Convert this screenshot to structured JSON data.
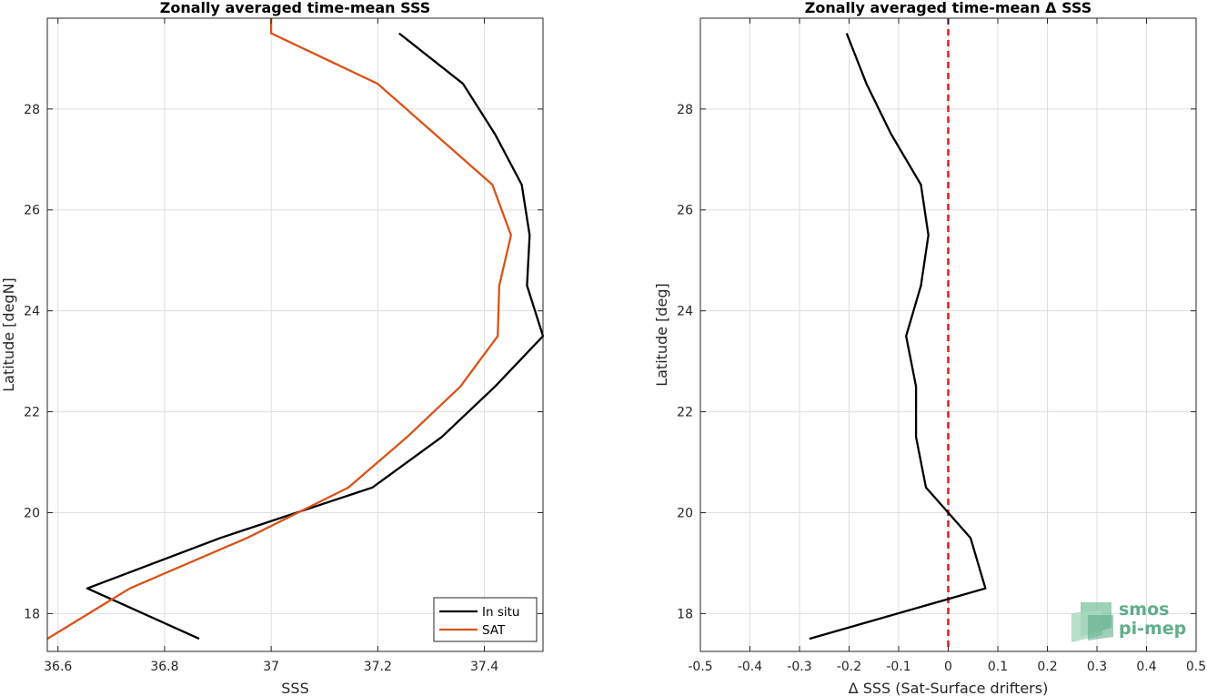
{
  "chart_data": [
    {
      "type": "line",
      "title": "Zonally averaged time-mean SSS",
      "xlabel": "SSS",
      "ylabel": "Latitude [degN]",
      "xlim": [
        36.58,
        37.51
      ],
      "ylim": [
        17.25,
        29.8
      ],
      "xticks": [
        36.6,
        36.8,
        37.0,
        37.2,
        37.4
      ],
      "xticklabels": [
        "36.6",
        "36.8",
        "37",
        "37.2",
        "37.4"
      ],
      "yticks": [
        18,
        20,
        22,
        24,
        26,
        28
      ],
      "yticklabels": [
        "18",
        "20",
        "22",
        "24",
        "26",
        "28"
      ],
      "grid": true,
      "legend": "bottom-right",
      "series": [
        {
          "name": "In situ",
          "color": "#000000",
          "x": [
            36.865,
            36.655,
            36.905,
            37.19,
            37.32,
            37.42,
            37.51,
            37.48,
            37.485,
            37.47,
            37.42,
            37.36,
            37.24
          ],
          "y": [
            17.5,
            18.5,
            19.5,
            20.5,
            21.5,
            22.5,
            23.5,
            24.5,
            25.5,
            26.5,
            27.5,
            28.5,
            29.5
          ]
        },
        {
          "name": "SAT",
          "color": "#d95319",
          "x": [
            36.58,
            36.735,
            36.955,
            37.145,
            37.255,
            37.355,
            37.425,
            37.428,
            37.45,
            37.415,
            37.2,
            37.0,
            37.0
          ],
          "y": [
            17.5,
            18.5,
            19.5,
            20.5,
            21.5,
            22.5,
            23.5,
            24.5,
            25.5,
            26.5,
            28.5,
            29.5,
            29.8
          ]
        }
      ]
    },
    {
      "type": "line",
      "title": "Zonally averaged time-mean Δ SSS",
      "xlabel": "Δ SSS (Sat-Surface drifters)",
      "ylabel": "Latitude [deg]",
      "xlim": [
        -0.5,
        0.5
      ],
      "ylim": [
        17.25,
        29.8
      ],
      "xticks": [
        -0.5,
        -0.4,
        -0.3,
        -0.2,
        -0.1,
        0,
        0.1,
        0.2,
        0.3,
        0.4,
        0.5
      ],
      "xticklabels": [
        "-0.5",
        "-0.4",
        "-0.3",
        "-0.2",
        "-0.1",
        "0",
        "0.1",
        "0.2",
        "0.3",
        "0.4",
        "0.5"
      ],
      "yticks": [
        18,
        20,
        22,
        24,
        26,
        28
      ],
      "yticklabels": [
        "18",
        "20",
        "22",
        "24",
        "26",
        "28"
      ],
      "grid": true,
      "series": [
        {
          "color": "#000000",
          "x": [
            -0.28,
            0.075,
            0.045,
            -0.045,
            -0.065,
            -0.065,
            -0.085,
            -0.055,
            -0.04,
            -0.055,
            -0.115,
            -0.165,
            -0.205
          ],
          "y": [
            17.5,
            18.5,
            19.5,
            20.5,
            21.5,
            22.5,
            23.5,
            24.5,
            25.5,
            26.5,
            27.5,
            28.5,
            29.5
          ]
        }
      ],
      "reference_line": {
        "x": 0,
        "style": "dashed",
        "color": "#e31a1c"
      }
    }
  ],
  "logo": {
    "line1": "smos",
    "line2": "pi-mep"
  }
}
